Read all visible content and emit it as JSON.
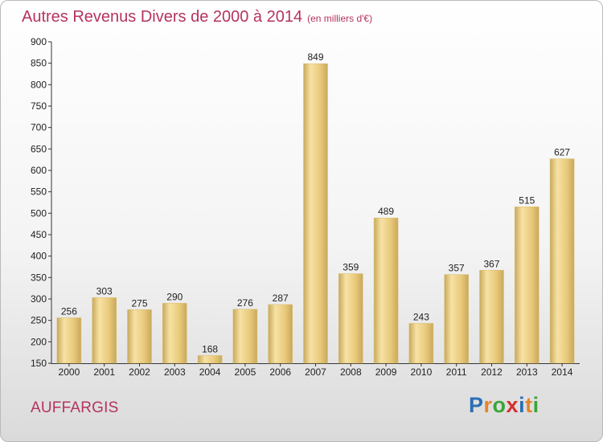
{
  "chart_data": {
    "type": "bar",
    "title": "Autres Revenus Divers de 2000 à 2014",
    "subtitle": "(en milliers d'€)",
    "categories": [
      "2000",
      "2001",
      "2002",
      "2003",
      "2004",
      "2005",
      "2006",
      "2007",
      "2008",
      "2009",
      "2010",
      "2011",
      "2012",
      "2013",
      "2014"
    ],
    "values": [
      256,
      303,
      275,
      290,
      168,
      276,
      287,
      849,
      359,
      489,
      243,
      357,
      367,
      515,
      627
    ],
    "xlabel": "",
    "ylabel": "",
    "ylim": [
      150,
      900
    ],
    "yticks": [
      150,
      200,
      250,
      300,
      350,
      400,
      450,
      500,
      550,
      600,
      650,
      700,
      750,
      800,
      850,
      900
    ],
    "grid": false,
    "legend": "none",
    "bar_color": "#e8c97a",
    "bar_highlight": "#f7e2a4",
    "bar_shade": "#c8a95c"
  },
  "location": {
    "name": "AUFFARGIS"
  },
  "brand": {
    "letters": [
      "P",
      "r",
      "o",
      "x",
      "i",
      "t",
      "i"
    ],
    "colors": [
      "#2a6fb6",
      "#e5862a",
      "#3aa535",
      "#d62e2e",
      "#2a6fb6",
      "#e5862a",
      "#3aa535"
    ]
  },
  "colors": {
    "accent": "#b5335f"
  }
}
